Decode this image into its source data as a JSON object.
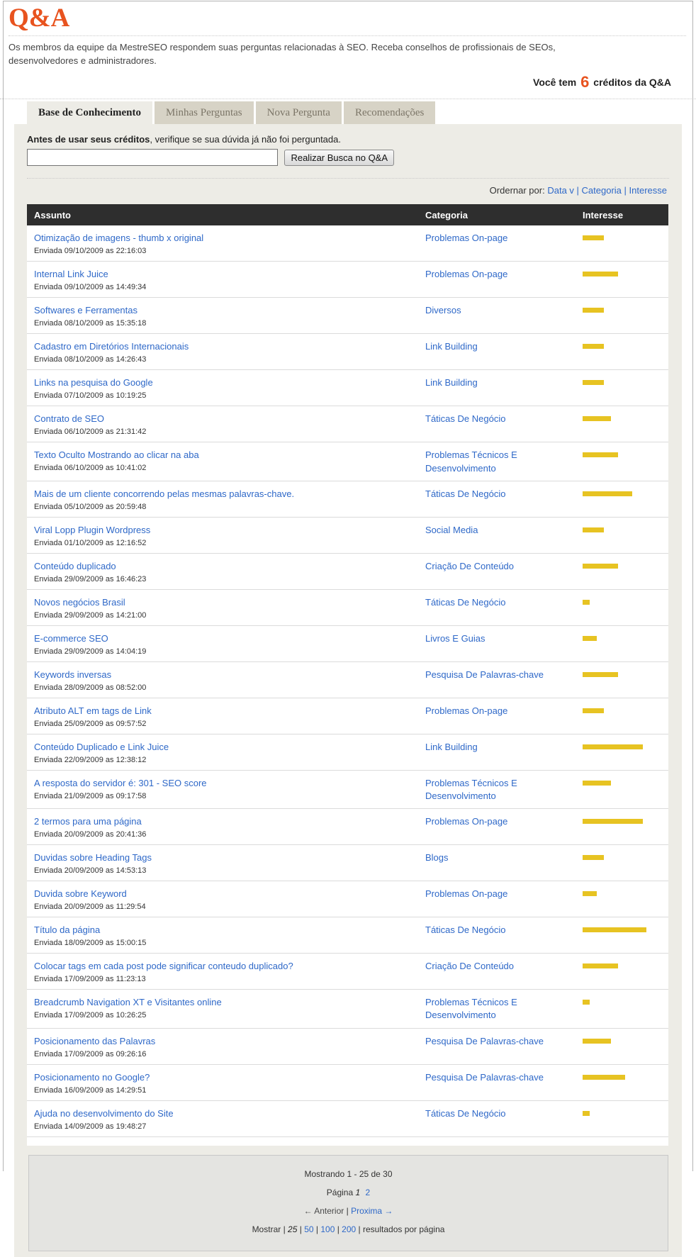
{
  "colors": {
    "accent": "#e8531f",
    "link": "#2e68c8",
    "bar": "#e7c322",
    "thead": "#2e2e2e",
    "pane": "#edece6"
  },
  "page": {
    "title": "Q&A",
    "description": "Os membros da equipe da MestreSEO respondem suas perguntas relacionadas à SEO. Receba conselhos de profissionais de SEOs, desenvolvedores e administradores.",
    "credits_prefix": "Você tem",
    "credits_count": "6",
    "credits_suffix": "créditos da Q&A"
  },
  "tabs": [
    {
      "label": "Base de Conhecimento",
      "active": true
    },
    {
      "label": "Minhas Perguntas",
      "active": false
    },
    {
      "label": "Nova Pergunta",
      "active": false
    },
    {
      "label": "Recomendações",
      "active": false
    }
  ],
  "search": {
    "label_bold": "Antes de usar seus créditos",
    "label_rest": ", verifique se sua dúvida já não foi perguntada.",
    "input_value": "",
    "button_label": "Realizar Busca no Q&A"
  },
  "sort": {
    "label": "Ordernar por:",
    "options": [
      "Data v",
      "Categoria",
      "Interesse"
    ]
  },
  "table": {
    "headers": [
      "Assunto",
      "Categoria",
      "Interesse"
    ],
    "rows": [
      {
        "title": "Otimização de imagens - thumb x original",
        "date": "Enviada 09/10/2009 as 22:16:03",
        "category": "Problemas On-page",
        "interest": 30
      },
      {
        "title": "Internal Link Juice",
        "date": "Enviada 09/10/2009 as 14:49:34",
        "category": "Problemas On-page",
        "interest": 50
      },
      {
        "title": "Softwares e Ferramentas",
        "date": "Enviada 08/10/2009 as 15:35:18",
        "category": "Diversos",
        "interest": 30
      },
      {
        "title": "Cadastro em Diretórios Internacionais",
        "date": "Enviada 08/10/2009 as 14:26:43",
        "category": "Link Building",
        "interest": 30
      },
      {
        "title": "Links na pesquisa do Google",
        "date": "Enviada 07/10/2009 as 10:19:25",
        "category": "Link Building",
        "interest": 30
      },
      {
        "title": "Contrato de SEO",
        "date": "Enviada 06/10/2009 as 21:31:42",
        "category": "Táticas De Negócio",
        "interest": 40
      },
      {
        "title": "Texto Oculto Mostrando ao clicar na aba",
        "date": "Enviada 06/10/2009 as 10:41:02",
        "category": "Problemas Técnicos E Desenvolvimento",
        "interest": 50
      },
      {
        "title": "Mais de um cliente concorrendo pelas mesmas palavras-chave.",
        "date": "Enviada 05/10/2009 as 20:59:48",
        "category": "Táticas De Negócio",
        "interest": 70
      },
      {
        "title": "Viral Lopp Plugin Wordpress",
        "date": "Enviada 01/10/2009 as 12:16:52",
        "category": "Social Media",
        "interest": 30
      },
      {
        "title": "Conteúdo duplicado",
        "date": "Enviada 29/09/2009 as 16:46:23",
        "category": "Criação De Conteúdo",
        "interest": 50
      },
      {
        "title": "Novos negócios Brasil",
        "date": "Enviada 29/09/2009 as 14:21:00",
        "category": "Táticas De Negócio",
        "interest": 10
      },
      {
        "title": "E-commerce SEO",
        "date": "Enviada 29/09/2009 as 14:04:19",
        "category": "Livros E Guias",
        "interest": 20
      },
      {
        "title": "Keywords inversas",
        "date": "Enviada 28/09/2009 as 08:52:00",
        "category": "Pesquisa De Palavras-chave",
        "interest": 50
      },
      {
        "title": "Atributo ALT em tags de Link",
        "date": "Enviada 25/09/2009 as 09:57:52",
        "category": "Problemas On-page",
        "interest": 30
      },
      {
        "title": "Conteúdo Duplicado e Link Juice",
        "date": "Enviada 22/09/2009 as 12:38:12",
        "category": "Link Building",
        "interest": 85
      },
      {
        "title": "A resposta do servidor é: 301 - SEO score",
        "date": "Enviada 21/09/2009 as 09:17:58",
        "category": "Problemas Técnicos E Desenvolvimento",
        "interest": 40
      },
      {
        "title": "2 termos para uma página",
        "date": "Enviada 20/09/2009 as 20:41:36",
        "category": "Problemas On-page",
        "interest": 85
      },
      {
        "title": "Duvidas sobre Heading Tags",
        "date": "Enviada 20/09/2009 as 14:53:13",
        "category": "Blogs",
        "interest": 30
      },
      {
        "title": "Duvida sobre Keyword",
        "date": "Enviada 20/09/2009 as 11:29:54",
        "category": "Problemas On-page",
        "interest": 20
      },
      {
        "title": "Título da página",
        "date": "Enviada 18/09/2009 as 15:00:15",
        "category": "Táticas De Negócio",
        "interest": 90
      },
      {
        "title": "Colocar tags em cada post pode significar conteudo duplicado?",
        "date": "Enviada 17/09/2009 as 11:23:13",
        "category": "Criação De Conteúdo",
        "interest": 50
      },
      {
        "title": "Breadcrumb Navigation XT e Visitantes online",
        "date": "Enviada 17/09/2009 as 10:26:25",
        "category": "Problemas Técnicos E Desenvolvimento",
        "interest": 10
      },
      {
        "title": "Posicionamento das Palavras",
        "date": "Enviada 17/09/2009 as 09:26:16",
        "category": "Pesquisa De Palavras-chave",
        "interest": 40
      },
      {
        "title": "Posicionamento no Google?",
        "date": "Enviada 16/09/2009 as 14:29:51",
        "category": "Pesquisa De Palavras-chave",
        "interest": 60
      },
      {
        "title": "Ajuda no desenvolvimento do Site",
        "date": "Enviada 14/09/2009 as 19:48:27",
        "category": "Táticas De Negócio",
        "interest": 10
      }
    ]
  },
  "pagination": {
    "summary": "Mostrando 1 - 25 de 30",
    "page_label": "Página",
    "current_page": "1",
    "other_pages": [
      "2"
    ],
    "prev_label": "← Anterior",
    "next_label": "Proxima →",
    "separator": "|",
    "show_label": "Mostrar",
    "current_page_size": "25",
    "page_size_options": [
      "50",
      "100",
      "200"
    ],
    "show_suffix": "resultados por página"
  }
}
